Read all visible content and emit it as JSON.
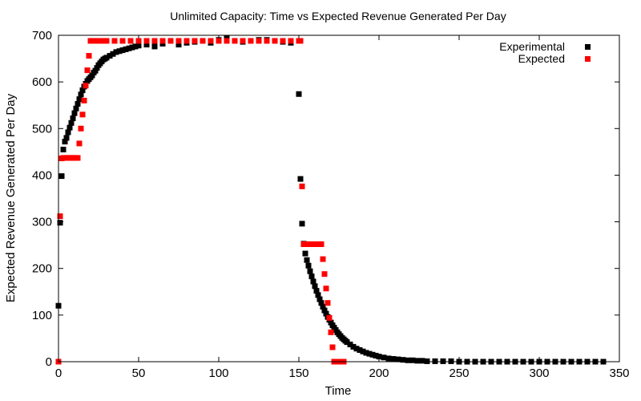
{
  "chart_data": {
    "type": "scatter",
    "title": "Unlimited Capacity: Time vs Expected Revenue Generated Per Day",
    "xlabel": "Time",
    "ylabel": "Expected Revenue Generated Per Day",
    "xlim": [
      0,
      350
    ],
    "ylim": [
      0,
      700
    ],
    "xticks": [
      "0",
      "50",
      "100",
      "150",
      "200",
      "250",
      "300",
      "350"
    ],
    "yticks": [
      "0",
      "100",
      "200",
      "300",
      "400",
      "500",
      "600",
      "700"
    ],
    "grid": false,
    "legend_position": "top-right",
    "colors": {
      "Experimental": "#000000",
      "Expected": "#ff0000"
    },
    "series": [
      {
        "name": "Experimental",
        "x": [
          0,
          1,
          2,
          3,
          4,
          5,
          6,
          7,
          8,
          9,
          10,
          11,
          12,
          13,
          14,
          15,
          16,
          17,
          18,
          19,
          20,
          21,
          22,
          23,
          24,
          25,
          26,
          27,
          28,
          29,
          30,
          32,
          34,
          36,
          38,
          40,
          42,
          44,
          46,
          48,
          50,
          55,
          60,
          65,
          70,
          75,
          80,
          85,
          90,
          95,
          100,
          105,
          110,
          115,
          120,
          125,
          130,
          135,
          140,
          145,
          150,
          151,
          152,
          153,
          154,
          155,
          156,
          157,
          158,
          159,
          160,
          161,
          162,
          163,
          164,
          165,
          166,
          167,
          168,
          169,
          170,
          171,
          172,
          173,
          174,
          175,
          176,
          177,
          178,
          179,
          180,
          182,
          184,
          186,
          188,
          190,
          192,
          194,
          196,
          198,
          200,
          203,
          206,
          209,
          212,
          215,
          218,
          221,
          224,
          227,
          230,
          235,
          240,
          245,
          250,
          255,
          260,
          265,
          270,
          275,
          280,
          285,
          290,
          295,
          300,
          305,
          310,
          315,
          320,
          325,
          330,
          335,
          340
        ],
        "y": [
          120,
          298,
          398,
          455,
          472,
          480,
          492,
          502,
          512,
          522,
          533,
          543,
          553,
          563,
          573,
          582,
          590,
          596,
          602,
          606,
          610,
          614,
          620,
          624,
          630,
          636,
          640,
          644,
          648,
          650,
          652,
          656,
          660,
          664,
          666,
          668,
          670,
          672,
          674,
          676,
          678,
          680,
          676,
          682,
          688,
          680,
          684,
          686,
          688,
          684,
          690,
          694,
          688,
          686,
          688,
          690,
          690,
          688,
          686,
          684,
          574,
          392,
          296,
          253,
          232,
          218,
          206,
          194,
          183,
          172,
          162,
          152,
          143,
          134,
          126,
          118,
          110,
          103,
          96,
          90,
          84,
          78,
          73,
          68,
          63,
          59,
          55,
          51,
          48,
          45,
          42,
          37,
          32,
          28,
          25,
          22,
          19,
          17,
          15,
          13,
          11,
          9,
          7,
          6,
          5,
          4,
          3,
          3,
          2,
          2,
          1,
          1,
          1,
          1,
          0,
          0,
          0,
          0,
          0,
          0,
          0,
          0,
          0,
          0,
          0,
          0,
          0,
          0,
          0,
          0,
          0,
          0,
          0
        ]
      },
      {
        "name": "Expected",
        "x": [
          0,
          1,
          2,
          3,
          4,
          5,
          6,
          7,
          8,
          9,
          10,
          11,
          12,
          13,
          14,
          15,
          16,
          17,
          18,
          19,
          20,
          22,
          24,
          26,
          28,
          30,
          35,
          40,
          45,
          50,
          55,
          60,
          65,
          70,
          75,
          80,
          85,
          90,
          95,
          100,
          105,
          110,
          115,
          120,
          125,
          130,
          135,
          140,
          145,
          150,
          151,
          152,
          153,
          154,
          155,
          156,
          157,
          158,
          159,
          160,
          161,
          162,
          163,
          164,
          165,
          166,
          167,
          168,
          169,
          170,
          171,
          172,
          173,
          174,
          175,
          176,
          177,
          178
        ],
        "y": [
          0,
          312,
          436,
          437,
          437,
          437,
          437,
          437,
          437,
          437,
          437,
          437,
          437,
          468,
          500,
          530,
          560,
          592,
          625,
          656,
          688,
          688,
          688,
          688,
          688,
          688,
          688,
          688,
          688,
          688,
          688,
          688,
          688,
          688,
          688,
          688,
          688,
          688,
          688,
          688,
          688,
          688,
          688,
          688,
          688,
          688,
          688,
          688,
          688,
          688,
          688,
          376,
          252,
          252,
          252,
          252,
          252,
          252,
          252,
          252,
          252,
          252,
          252,
          252,
          220,
          188,
          157,
          126,
          94,
          63,
          31,
          0,
          0,
          0,
          0,
          0,
          0,
          0
        ]
      }
    ]
  }
}
